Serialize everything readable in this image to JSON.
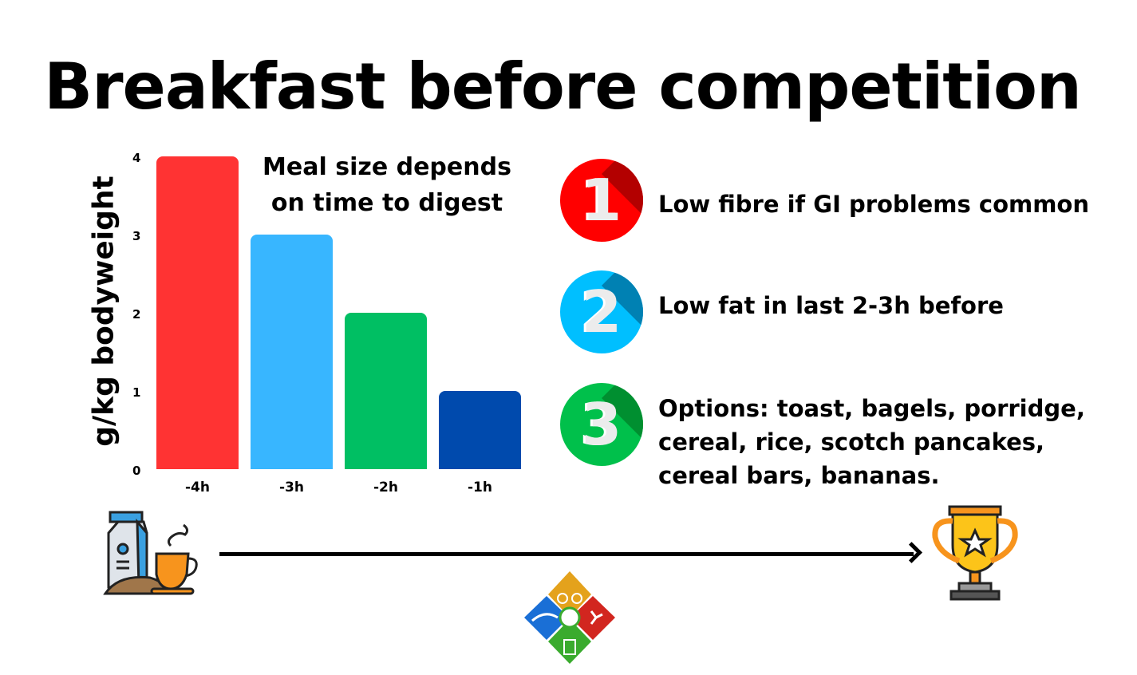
{
  "title": "Breakfast before competition",
  "chart_subtitle_line1": "Meal size depends",
  "chart_subtitle_line2": "on time to digest",
  "chart_data": {
    "type": "bar",
    "title": "Meal size depends on time to digest",
    "xlabel": "",
    "ylabel": "g/kg bodyweight",
    "categories": [
      "-4h",
      "-3h",
      "-2h",
      "-1h"
    ],
    "values": [
      4,
      3,
      2,
      1
    ],
    "colors": [
      "#ff3333",
      "#38b6ff",
      "#00bf63",
      "#004aad"
    ],
    "ylim": [
      0,
      4
    ],
    "yticks": [
      "0",
      "1",
      "2",
      "3",
      "4"
    ],
    "grid": false,
    "legend": "none"
  },
  "points": [
    {
      "number": "1",
      "color": "#ff0000",
      "shadow": "#b30000",
      "lines": [
        "Low fibre if GI problems common"
      ]
    },
    {
      "number": "2",
      "color": "#00bfff",
      "shadow": "#0081b3",
      "lines": [
        "Low fat in last 2-3h before"
      ]
    },
    {
      "number": "3",
      "color": "#00c04b",
      "shadow": "#008f30",
      "lines": [
        "Options: toast, bagels, porridge,",
        "cereal, rice, scotch pancakes,",
        "cereal bars, bananas."
      ]
    }
  ],
  "icons": {
    "start": "breakfast-icon",
    "end": "trophy-icon",
    "logo": "triathlon-nutrition-logo"
  }
}
